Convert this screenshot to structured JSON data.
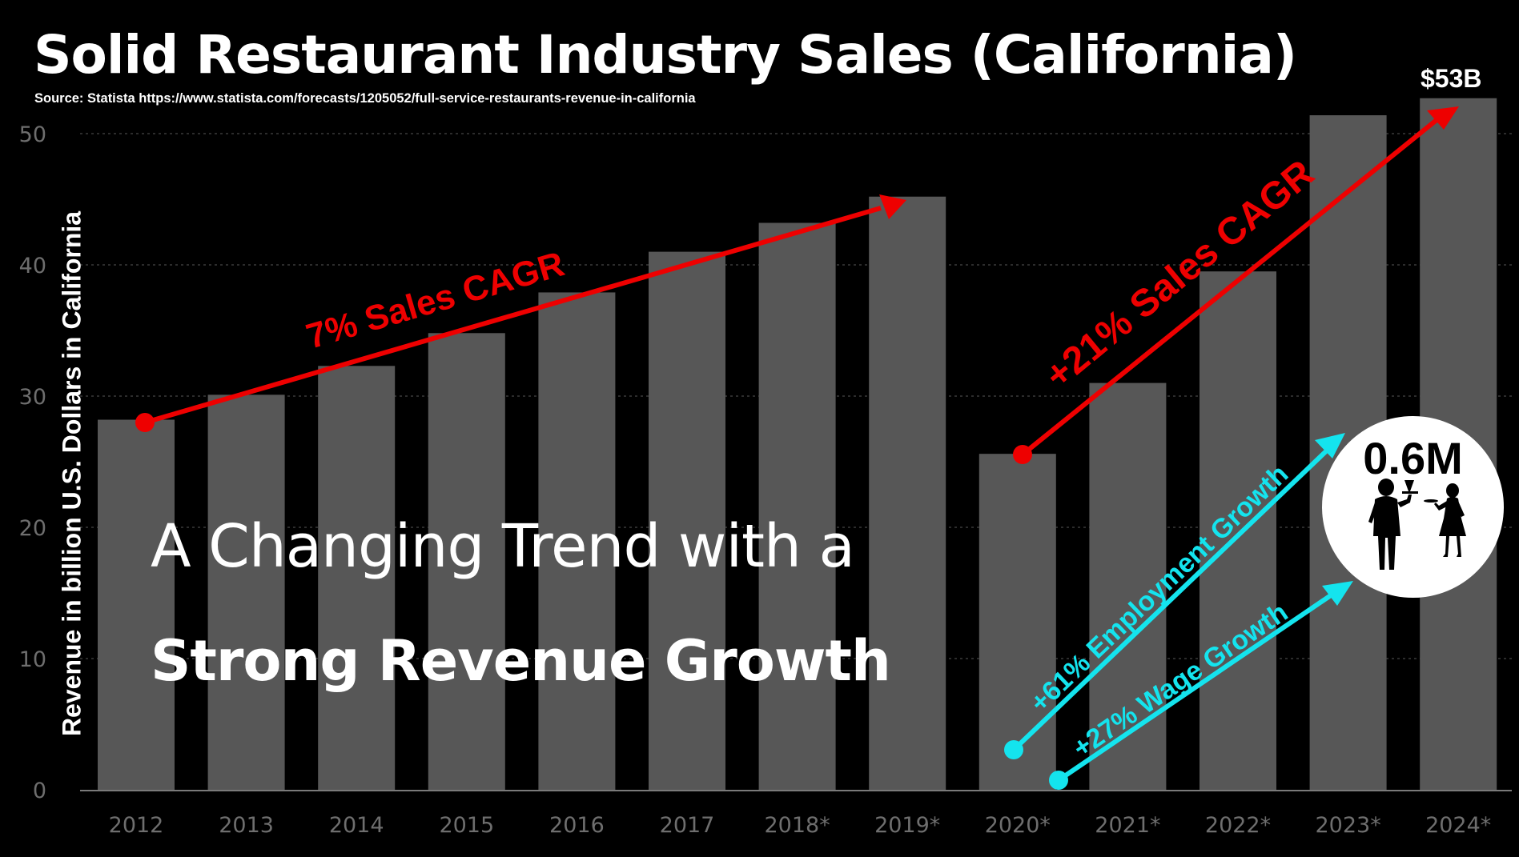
{
  "title": "Solid Restaurant Industry Sales (California)",
  "source": "Source: Statista https://www.statista.com/forecasts/1205052/full-service-restaurants-revenue-in-california",
  "overlay": {
    "line1": "A Changing Trend with a",
    "line2": "Strong Revenue Growth"
  },
  "annotations": {
    "peak_label": "$53B",
    "cagr_first": "7% Sales CAGR",
    "cagr_second": "+21% Sales CAGR",
    "employment": "+61% Employment Growth",
    "wage": "+27% Wage Growth",
    "badge_value": "0.6M",
    "badge_icon": "restaurant-staff-silhouettes-icon"
  },
  "colors": {
    "background": "#000000",
    "bars": "#575757",
    "sales_arrows": "#ee0000",
    "growth_arrows": "#14e4ee",
    "tick_text": "#6e6e6e",
    "text": "#ffffff"
  },
  "chart_data": {
    "type": "bar",
    "categories": [
      "2012",
      "2013",
      "2014",
      "2015",
      "2016",
      "2017",
      "2018*",
      "2019*",
      "2020*",
      "2021*",
      "2022*",
      "2023*",
      "2024*"
    ],
    "values": [
      28.2,
      30.1,
      32.3,
      34.8,
      37.9,
      41.0,
      43.2,
      45.2,
      25.6,
      31.0,
      39.5,
      51.4,
      52.7
    ],
    "ylabel": "Revenue in billion U.S. Dollars in California",
    "xlabel": "",
    "yticks": [
      0,
      10,
      20,
      30,
      40,
      50
    ],
    "ylim": [
      0,
      53
    ],
    "grid": true
  }
}
